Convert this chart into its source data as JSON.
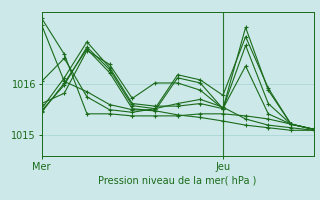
{
  "background_color": "#cce8e8",
  "plot_bg_color": "#cce8e8",
  "grid_color": "#99cccc",
  "line_color": "#1a6b1a",
  "xlabel": "Pression niveau de la mer( hPa )",
  "yticks": [
    1015,
    1016
  ],
  "ylim": [
    1014.6,
    1017.4
  ],
  "xlim": [
    0,
    48
  ],
  "xticklabels": [
    [
      "Mer",
      0
    ],
    [
      "Jeu",
      32
    ]
  ],
  "series": [
    [
      0,
      1017.15,
      4,
      1016.05,
      8,
      1015.85,
      12,
      1015.6,
      16,
      1015.5,
      20,
      1015.48,
      24,
      1015.4,
      28,
      1015.35,
      32,
      1015.28,
      36,
      1015.2,
      40,
      1015.15,
      44,
      1015.1,
      48,
      1015.1
    ],
    [
      0,
      1016.05,
      4,
      1016.5,
      8,
      1015.75,
      12,
      1015.5,
      16,
      1015.45,
      20,
      1015.52,
      24,
      1015.62,
      28,
      1015.7,
      32,
      1015.55,
      36,
      1015.32,
      40,
      1015.2,
      44,
      1015.15,
      48,
      1015.1
    ],
    [
      0,
      1015.62,
      4,
      1015.82,
      8,
      1016.65,
      12,
      1016.38,
      16,
      1015.72,
      20,
      1016.02,
      24,
      1016.02,
      28,
      1015.88,
      32,
      1015.52,
      36,
      1016.35,
      40,
      1015.42,
      44,
      1015.22,
      48,
      1015.12
    ],
    [
      0,
      1015.52,
      4,
      1016.12,
      8,
      1016.82,
      12,
      1016.32,
      16,
      1015.62,
      20,
      1015.57,
      24,
      1015.57,
      28,
      1015.62,
      32,
      1015.52,
      36,
      1016.75,
      40,
      1015.62,
      44,
      1015.22,
      48,
      1015.12
    ],
    [
      0,
      1015.48,
      4,
      1015.98,
      8,
      1016.72,
      12,
      1016.28,
      16,
      1015.58,
      20,
      1015.52,
      24,
      1016.18,
      28,
      1016.08,
      32,
      1015.78,
      36,
      1016.92,
      40,
      1015.92,
      44,
      1015.22,
      48,
      1015.12
    ],
    [
      0,
      1015.45,
      4,
      1016.02,
      8,
      1016.68,
      12,
      1016.22,
      16,
      1015.52,
      20,
      1015.48,
      24,
      1016.12,
      28,
      1016.02,
      32,
      1015.52,
      36,
      1017.1,
      40,
      1015.88,
      44,
      1015.22,
      48,
      1015.12
    ],
    [
      0,
      1017.28,
      4,
      1016.58,
      8,
      1015.42,
      12,
      1015.42,
      16,
      1015.38,
      20,
      1015.38,
      24,
      1015.38,
      28,
      1015.42,
      32,
      1015.42,
      36,
      1015.38,
      40,
      1015.32,
      44,
      1015.22,
      48,
      1015.12
    ]
  ],
  "vline_x": 32,
  "marker": "+",
  "markersize": 3,
  "linewidth": 0.8,
  "xlabel_fontsize": 7,
  "tick_fontsize": 7
}
